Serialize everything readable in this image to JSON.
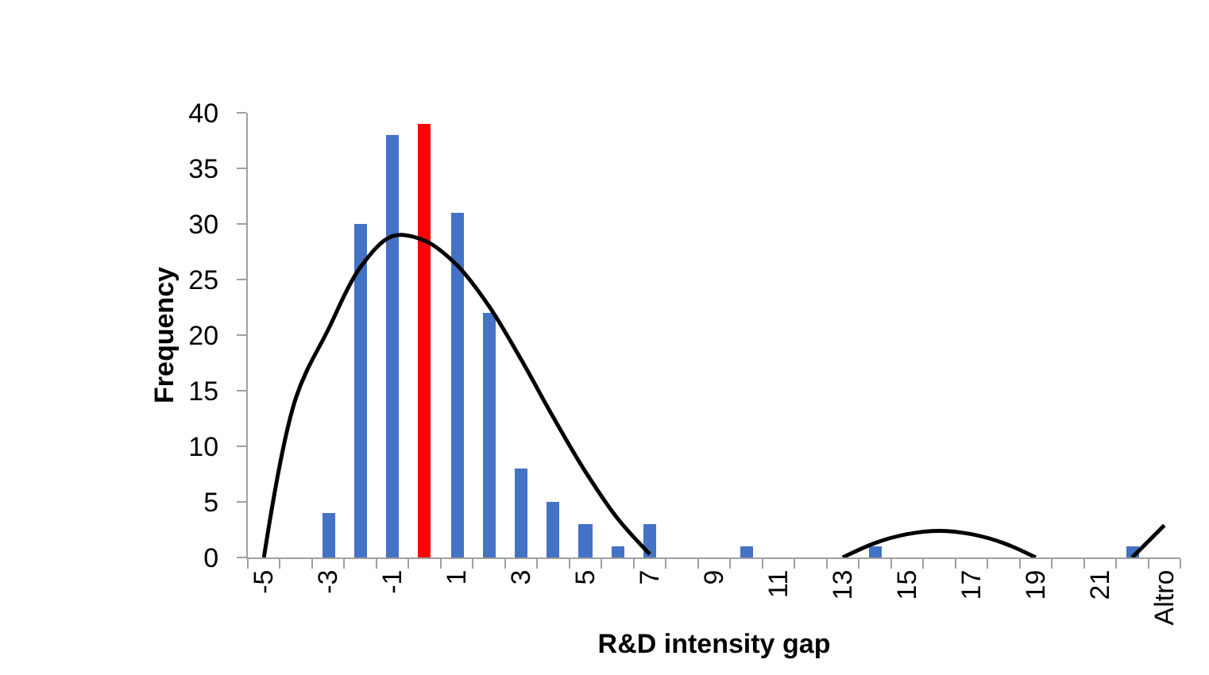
{
  "chart_data": {
    "type": "bar",
    "xlabel": "R&D intensity gap",
    "ylabel": "Frequency",
    "categories": [
      "-5",
      null,
      "-3",
      null,
      "-1",
      null,
      "1",
      null,
      "3",
      null,
      "5",
      null,
      "7",
      null,
      "9",
      null,
      "11",
      null,
      "13",
      null,
      "15",
      null,
      "17",
      null,
      "19",
      null,
      "21",
      null,
      "Altro"
    ],
    "series": [
      {
        "values": [
          null,
          null,
          4,
          30,
          38,
          39,
          31,
          22,
          8,
          5,
          3,
          1,
          3,
          null,
          null,
          1,
          null,
          null,
          null,
          1,
          null,
          null,
          null,
          null,
          null,
          null,
          null,
          1,
          null
        ],
        "colors": [
          "#4472c4",
          "#4472c4",
          "#4472c4",
          "#4472c4",
          "#4472c4",
          "#ff0000",
          "#4472c4",
          "#4472c4",
          "#4472c4",
          "#4472c4",
          "#4472c4",
          "#4472c4",
          "#4472c4",
          "#4472c4",
          "#4472c4",
          "#4472c4",
          "#4472c4",
          "#4472c4",
          "#4472c4",
          "#4472c4",
          "#4472c4",
          "#4472c4",
          "#4472c4",
          "#4472c4",
          "#4472c4",
          "#4472c4",
          "#4472c4",
          "#4472c4",
          "#4472c4"
        ]
      },
      {
        "type": "line",
        "color": "#000000",
        "values": [
          0,
          14.4,
          20.5,
          26.1,
          28.9,
          28.5,
          26.3,
          22.6,
          17.8,
          12.6,
          7.7,
          3.5,
          0.3,
          null,
          null,
          null,
          null,
          null,
          0,
          1.3,
          2.1,
          2.4,
          2.1,
          1.3,
          0,
          null,
          null,
          0,
          2.9
        ]
      }
    ],
    "ylim": [
      0,
      40
    ],
    "yticks": [
      0,
      5,
      10,
      15,
      20,
      25,
      30,
      35,
      40
    ],
    "marker": "none",
    "line_style": "solid"
  }
}
